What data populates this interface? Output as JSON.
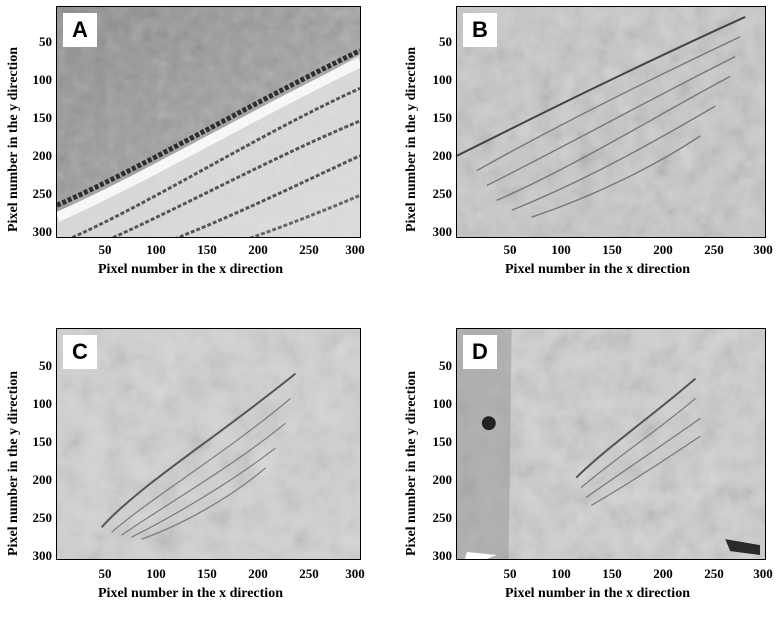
{
  "panels": [
    {
      "label": "A",
      "ylabel": "Pixel number in the y direction",
      "xlabel": "Pixel number in the x direction",
      "yticks": [
        "50",
        "100",
        "150",
        "200",
        "250",
        "300"
      ],
      "xticks": [
        "50",
        "100",
        "150",
        "200",
        "250",
        "300"
      ]
    },
    {
      "label": "B",
      "ylabel": "Pixel number in the y direction",
      "xlabel": "Pixel number in the x direction",
      "yticks": [
        "50",
        "100",
        "150",
        "200",
        "250",
        "300"
      ],
      "xticks": [
        "50",
        "100",
        "150",
        "200",
        "250",
        "300"
      ]
    },
    {
      "label": "C",
      "ylabel": "Pixel number in the y direction",
      "xlabel": "Pixel number in the x direction",
      "yticks": [
        "50",
        "100",
        "150",
        "200",
        "250",
        "300"
      ],
      "xticks": [
        "50",
        "100",
        "150",
        "200",
        "250",
        "300"
      ]
    },
    {
      "label": "D",
      "ylabel": "Pixel number in the y direction",
      "xlabel": "Pixel number in the x direction",
      "yticks": [
        "50",
        "100",
        "150",
        "200",
        "250",
        "300"
      ],
      "xticks": [
        "50",
        "100",
        "150",
        "200",
        "250",
        "300"
      ]
    }
  ],
  "colors": {
    "frame": "#000000",
    "background": "#ffffff"
  }
}
